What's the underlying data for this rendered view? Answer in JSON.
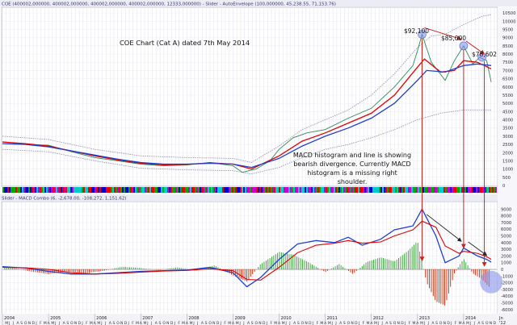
{
  "header": {
    "top_bar": "COE (400002,000000, 400002,000000, 400002,000000, 400002,000000, 12333,000000) - Slider - AutoEnvelope (100,000000, 45,238.55, 71,153.76)",
    "bottom_bar": "Slider - MACD Combo (6, -2,678.00, -108,272, 1,151.62)"
  },
  "annotations": {
    "title": "COE Chart (Cat A) dated 7th May 2014",
    "note": [
      "MACD histogram and line is showing",
      "bearish divergence. Currently MACD",
      "histogram is a missing right",
      "shoulder."
    ],
    "peak1": "$92,100",
    "peak2": "$85,000",
    "peak3": "$78,602"
  },
  "colors": {
    "price": "#2e8b57",
    "ema_red": "#e00000",
    "ema_blue": "#1f3fcf",
    "envelope": "#8a8aa8",
    "hist_up": "#2e9e2e",
    "hist_down": "#cc2200",
    "arrow": "#cc2222",
    "highlight": "#7b8be8"
  },
  "chart_data": [
    {
      "type": "line",
      "title": "COE Chart (Cat A) dated 7th May 2014",
      "y_ticks": [
        "10500",
        "10000",
        "9500",
        "9000",
        "8500",
        "8000",
        "7500",
        "7000",
        "6500",
        "6000",
        "5500",
        "5000",
        "4500",
        "4000",
        "3500",
        "3000",
        "2500",
        "2000",
        "1500",
        "1000",
        "500",
        "0"
      ],
      "ylim": [
        0,
        10800
      ],
      "x_period": [
        "2004",
        "2014.7"
      ],
      "series": [
        {
          "name": "COE price",
          "points": [
            [
              2004.0,
              2650
            ],
            [
              2004.5,
              2500
            ],
            [
              2005.0,
              2450
            ],
            [
              2005.5,
              2050
            ],
            [
              2006.0,
              1700
            ],
            [
              2006.5,
              1500
            ],
            [
              2007.0,
              1300
            ],
            [
              2007.5,
              1200
            ],
            [
              2008.0,
              1250
            ],
            [
              2008.5,
              1400
            ],
            [
              2009.0,
              1200
            ],
            [
              2009.2,
              800
            ],
            [
              2009.5,
              1000
            ],
            [
              2009.8,
              1500
            ],
            [
              2010.0,
              2200
            ],
            [
              2010.3,
              2900
            ],
            [
              2010.6,
              3200
            ],
            [
              2011.0,
              3400
            ],
            [
              2011.5,
              4100
            ],
            [
              2012.0,
              4700
            ],
            [
              2012.5,
              6000
            ],
            [
              2012.9,
              7300
            ],
            [
              2013.0,
              8200
            ],
            [
              2013.1,
              9200
            ],
            [
              2013.3,
              7500
            ],
            [
              2013.6,
              6400
            ],
            [
              2013.8,
              7600
            ],
            [
              2014.0,
              8500
            ],
            [
              2014.2,
              7400
            ],
            [
              2014.35,
              7800
            ],
            [
              2014.5,
              7600
            ],
            [
              2014.6,
              6300
            ]
          ]
        },
        {
          "name": "EMA red",
          "points": [
            [
              2004.0,
              2650
            ],
            [
              2004.5,
              2550
            ],
            [
              2005.0,
              2400
            ],
            [
              2005.5,
              2100
            ],
            [
              2006.0,
              1800
            ],
            [
              2006.5,
              1550
            ],
            [
              2007.0,
              1350
            ],
            [
              2007.5,
              1250
            ],
            [
              2008.0,
              1280
            ],
            [
              2008.5,
              1380
            ],
            [
              2009.0,
              1300
            ],
            [
              2009.4,
              1000
            ],
            [
              2010.0,
              1800
            ],
            [
              2010.5,
              2700
            ],
            [
              2011.0,
              3200
            ],
            [
              2011.5,
              3800
            ],
            [
              2012.0,
              4400
            ],
            [
              2012.5,
              5500
            ],
            [
              2013.0,
              7200
            ],
            [
              2013.15,
              7700
            ],
            [
              2013.5,
              6900
            ],
            [
              2013.8,
              7000
            ],
            [
              2014.0,
              7600
            ],
            [
              2014.3,
              7500
            ],
            [
              2014.6,
              7100
            ]
          ]
        },
        {
          "name": "EMA blue",
          "points": [
            [
              2004.0,
              2550
            ],
            [
              2004.5,
              2500
            ],
            [
              2005.0,
              2350
            ],
            [
              2005.5,
              2100
            ],
            [
              2006.0,
              1850
            ],
            [
              2006.5,
              1600
            ],
            [
              2007.0,
              1400
            ],
            [
              2007.5,
              1300
            ],
            [
              2008.0,
              1300
            ],
            [
              2008.5,
              1350
            ],
            [
              2009.0,
              1300
            ],
            [
              2009.4,
              1100
            ],
            [
              2010.0,
              1650
            ],
            [
              2010.5,
              2400
            ],
            [
              2011.0,
              3000
            ],
            [
              2011.5,
              3500
            ],
            [
              2012.0,
              4100
            ],
            [
              2012.5,
              5000
            ],
            [
              2013.0,
              6400
            ],
            [
              2013.2,
              7000
            ],
            [
              2013.6,
              6900
            ],
            [
              2014.0,
              7300
            ],
            [
              2014.3,
              7400
            ],
            [
              2014.6,
              7300
            ]
          ]
        },
        {
          "name": "Envelope upper",
          "points": [
            [
              2004.0,
              3000
            ],
            [
              2005.0,
              2800
            ],
            [
              2006.0,
              2200
            ],
            [
              2007.0,
              1800
            ],
            [
              2008.0,
              1700
            ],
            [
              2009.0,
              1650
            ],
            [
              2009.4,
              1400
            ],
            [
              2010.0,
              2400
            ],
            [
              2010.5,
              3400
            ],
            [
              2011.0,
              4000
            ],
            [
              2011.5,
              4600
            ],
            [
              2012.0,
              5500
            ],
            [
              2012.5,
              6800
            ],
            [
              2013.0,
              8400
            ],
            [
              2013.3,
              9100
            ],
            [
              2013.6,
              9200
            ],
            [
              2014.0,
              9800
            ],
            [
              2014.4,
              10300
            ],
            [
              2014.6,
              10400
            ]
          ]
        },
        {
          "name": "Envelope lower",
          "points": [
            [
              2004.0,
              2200
            ],
            [
              2005.0,
              2050
            ],
            [
              2006.0,
              1500
            ],
            [
              2007.0,
              1050
            ],
            [
              2008.0,
              950
            ],
            [
              2009.0,
              900
            ],
            [
              2009.4,
              700
            ],
            [
              2010.0,
              1100
            ],
            [
              2010.5,
              1700
            ],
            [
              2011.0,
              2200
            ],
            [
              2011.5,
              2500
            ],
            [
              2012.0,
              2900
            ],
            [
              2012.5,
              3400
            ],
            [
              2013.0,
              4000
            ],
            [
              2013.5,
              4400
            ],
            [
              2014.0,
              4600
            ],
            [
              2014.6,
              4600
            ]
          ]
        }
      ]
    },
    {
      "type": "line",
      "title": "MACD Combo",
      "y_ticks": [
        "9000",
        "8000",
        "7000",
        "6000",
        "5000",
        "4000",
        "3000",
        "2000",
        "1000",
        "0",
        "-1000",
        "-2000",
        "-3000",
        "-4000",
        "-5000",
        "-6000"
      ],
      "ylim": [
        -6500,
        10000
      ],
      "series": [
        {
          "name": "MACD",
          "points": [
            [
              2004.0,
              400
            ],
            [
              2004.5,
              200
            ],
            [
              2005.0,
              -300
            ],
            [
              2005.5,
              -700
            ],
            [
              2006.0,
              -700
            ],
            [
              2006.5,
              -500
            ],
            [
              2007.0,
              -300
            ],
            [
              2007.5,
              -200
            ],
            [
              2008.0,
              -100
            ],
            [
              2008.5,
              300
            ],
            [
              2009.0,
              -500
            ],
            [
              2009.3,
              -2600
            ],
            [
              2009.6,
              -1200
            ],
            [
              2010.0,
              1500
            ],
            [
              2010.4,
              3800
            ],
            [
              2010.8,
              4300
            ],
            [
              2011.2,
              4000
            ],
            [
              2011.5,
              4800
            ],
            [
              2011.8,
              3600
            ],
            [
              2012.2,
              4500
            ],
            [
              2012.5,
              5900
            ],
            [
              2012.9,
              6500
            ],
            [
              2013.1,
              9000
            ],
            [
              2013.4,
              5000
            ],
            [
              2013.6,
              1000
            ],
            [
              2013.9,
              2000
            ],
            [
              2014.0,
              3200
            ],
            [
              2014.3,
              2000
            ],
            [
              2014.5,
              1500
            ],
            [
              2014.6,
              1100
            ]
          ]
        },
        {
          "name": "Signal",
          "points": [
            [
              2004.0,
              300
            ],
            [
              2004.5,
              250
            ],
            [
              2005.0,
              0
            ],
            [
              2005.5,
              -500
            ],
            [
              2006.0,
              -700
            ],
            [
              2006.5,
              -600
            ],
            [
              2007.0,
              -400
            ],
            [
              2007.5,
              -250
            ],
            [
              2008.0,
              -150
            ],
            [
              2008.5,
              100
            ],
            [
              2009.0,
              -200
            ],
            [
              2009.3,
              -1500
            ],
            [
              2009.6,
              -1600
            ],
            [
              2010.0,
              300
            ],
            [
              2010.4,
              2500
            ],
            [
              2010.8,
              3600
            ],
            [
              2011.2,
              3900
            ],
            [
              2011.5,
              4300
            ],
            [
              2011.8,
              3900
            ],
            [
              2012.2,
              4100
            ],
            [
              2012.5,
              5000
            ],
            [
              2012.9,
              5900
            ],
            [
              2013.1,
              7200
            ],
            [
              2013.4,
              6300
            ],
            [
              2013.6,
              3500
            ],
            [
              2013.9,
              2400
            ],
            [
              2014.0,
              2700
            ],
            [
              2014.3,
              2400
            ],
            [
              2014.5,
              1900
            ],
            [
              2014.6,
              1500
            ]
          ]
        },
        {
          "name": "Histogram",
          "points": [
            [
              2004.2,
              300
            ],
            [
              2004.6,
              -300
            ],
            [
              2005.0,
              -700
            ],
            [
              2005.4,
              -300
            ],
            [
              2005.8,
              -600
            ],
            [
              2006.2,
              -200
            ],
            [
              2006.6,
              400
            ],
            [
              2007.0,
              200
            ],
            [
              2007.4,
              -100
            ],
            [
              2007.8,
              300
            ],
            [
              2008.2,
              -200
            ],
            [
              2008.6,
              600
            ],
            [
              2009.0,
              -900
            ],
            [
              2009.3,
              -1800
            ],
            [
              2009.6,
              800
            ],
            [
              2010.0,
              2600
            ],
            [
              2010.3,
              2200
            ],
            [
              2010.6,
              1200
            ],
            [
              2011.0,
              -400
            ],
            [
              2011.3,
              800
            ],
            [
              2011.6,
              -700
            ],
            [
              2011.9,
              1100
            ],
            [
              2012.2,
              1800
            ],
            [
              2012.5,
              1200
            ],
            [
              2012.8,
              2800
            ],
            [
              2013.0,
              4200
            ],
            [
              2013.2,
              -2000
            ],
            [
              2013.4,
              -4800
            ],
            [
              2013.6,
              -5400
            ],
            [
              2013.8,
              -600
            ],
            [
              2014.0,
              1600
            ],
            [
              2014.2,
              -600
            ],
            [
              2014.4,
              -1500
            ],
            [
              2014.55,
              -2600
            ]
          ]
        }
      ]
    }
  ],
  "x_axis": {
    "years": [
      "2004",
      "2005",
      "2006",
      "2007",
      "2008",
      "2009",
      "2010",
      "2011",
      "2012",
      "2013",
      "2014"
    ],
    "end_label": "Jn",
    "years_label_top": "'12",
    "month_letters": [
      "M",
      "J",
      "J",
      "A",
      "S",
      "O",
      "N",
      "D",
      "J",
      "F",
      "M",
      "A"
    ]
  }
}
